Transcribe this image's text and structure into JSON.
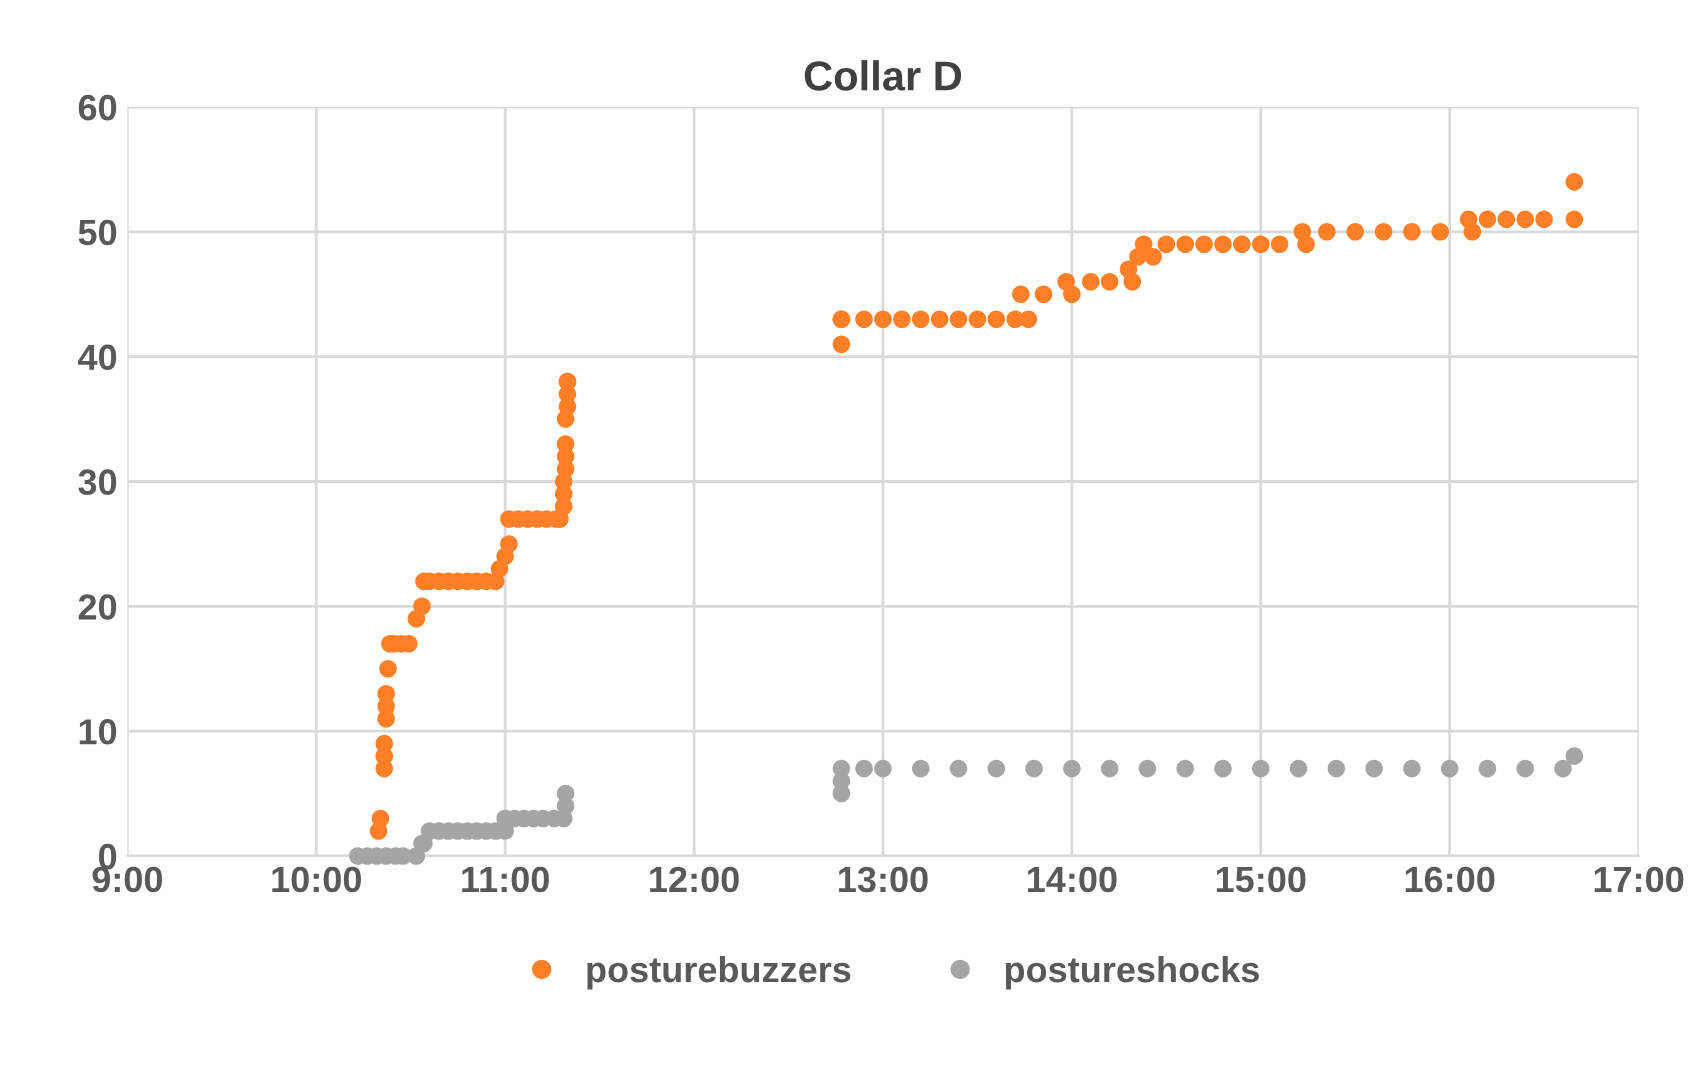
{
  "chart_data": {
    "type": "scatter",
    "title": "Collar D",
    "xlim": [
      9,
      17
    ],
    "xticks": [
      {
        "value": 9,
        "label": "9:00"
      },
      {
        "value": 10,
        "label": "10:00"
      },
      {
        "value": 11,
        "label": "11:00"
      },
      {
        "value": 12,
        "label": "12:00"
      },
      {
        "value": 13,
        "label": "13:00"
      },
      {
        "value": 14,
        "label": "14:00"
      },
      {
        "value": 15,
        "label": "15:00"
      },
      {
        "value": 16,
        "label": "16:00"
      },
      {
        "value": 17,
        "label": "17:00"
      }
    ],
    "ylim": [
      0,
      60
    ],
    "yticks": [
      0,
      10,
      20,
      30,
      40,
      50,
      60
    ],
    "grid": true,
    "legend": "bottom",
    "marker": "circle",
    "series": [
      {
        "name": "posturebuzzers",
        "color": "#ff7f27",
        "x": [
          10.33,
          10.34,
          10.36,
          10.36,
          10.36,
          10.37,
          10.37,
          10.37,
          10.38,
          10.39,
          10.41,
          10.45,
          10.49,
          10.53,
          10.56,
          10.57,
          10.6,
          10.65,
          10.7,
          10.75,
          10.8,
          10.85,
          10.9,
          10.95,
          10.97,
          11.0,
          11.02,
          11.02,
          11.07,
          11.12,
          11.17,
          11.22,
          11.27,
          11.29,
          11.31,
          11.31,
          11.31,
          11.32,
          11.32,
          11.32,
          11.32,
          11.33,
          11.33,
          11.33,
          11.33,
          12.78,
          12.78,
          12.78,
          12.9,
          13.0,
          13.1,
          13.2,
          13.3,
          13.4,
          13.5,
          13.6,
          13.7,
          13.77,
          13.73,
          13.85,
          14.0,
          13.97,
          14.1,
          14.2,
          14.32,
          14.3,
          14.35,
          14.43,
          14.38,
          14.5,
          14.6,
          14.7,
          14.8,
          14.9,
          15.0,
          15.1,
          15.24,
          15.22,
          15.35,
          15.5,
          15.65,
          15.8,
          15.95,
          16.12,
          16.1,
          16.2,
          16.3,
          16.4,
          16.5,
          16.66,
          16.66
        ],
        "values": [
          2,
          3,
          7,
          8,
          9,
          11,
          12,
          13,
          15,
          17,
          17,
          17,
          17,
          19,
          20,
          22,
          22,
          22,
          22,
          22,
          22,
          22,
          22,
          22,
          23,
          24,
          25,
          27,
          27,
          27,
          27,
          27,
          27,
          27,
          28,
          29,
          30,
          31,
          32,
          33,
          35,
          36,
          37,
          38,
          38,
          41,
          43,
          43,
          43,
          43,
          43,
          43,
          43,
          43,
          43,
          43,
          43,
          43,
          45,
          45,
          45,
          46,
          46,
          46,
          46,
          47,
          48,
          48,
          49,
          49,
          49,
          49,
          49,
          49,
          49,
          49,
          49,
          50,
          50,
          50,
          50,
          50,
          50,
          50,
          51,
          51,
          51,
          51,
          51,
          51,
          54
        ]
      },
      {
        "name": "postureshocks",
        "color": "#a5a5a5",
        "x": [
          10.22,
          10.27,
          10.32,
          10.37,
          10.42,
          10.46,
          10.53,
          10.56,
          10.57,
          10.6,
          10.65,
          10.7,
          10.75,
          10.8,
          10.85,
          10.9,
          10.95,
          11.0,
          11.0,
          11.05,
          11.1,
          11.15,
          11.2,
          11.26,
          11.31,
          11.32,
          11.32,
          12.78,
          12.78,
          12.78,
          12.9,
          13.0,
          13.2,
          13.4,
          13.6,
          13.8,
          14.0,
          14.2,
          14.4,
          14.6,
          14.8,
          15.0,
          15.2,
          15.4,
          15.6,
          15.8,
          16.0,
          16.2,
          16.4,
          16.6,
          16.66
        ],
        "values": [
          0,
          0,
          0,
          0,
          0,
          0,
          0,
          1,
          1,
          2,
          2,
          2,
          2,
          2,
          2,
          2,
          2,
          2,
          3,
          3,
          3,
          3,
          3,
          3,
          3,
          4,
          5,
          5,
          6,
          7,
          7,
          7,
          7,
          7,
          7,
          7,
          7,
          7,
          7,
          7,
          7,
          7,
          7,
          7,
          7,
          7,
          7,
          7,
          7,
          7,
          8
        ]
      }
    ]
  }
}
